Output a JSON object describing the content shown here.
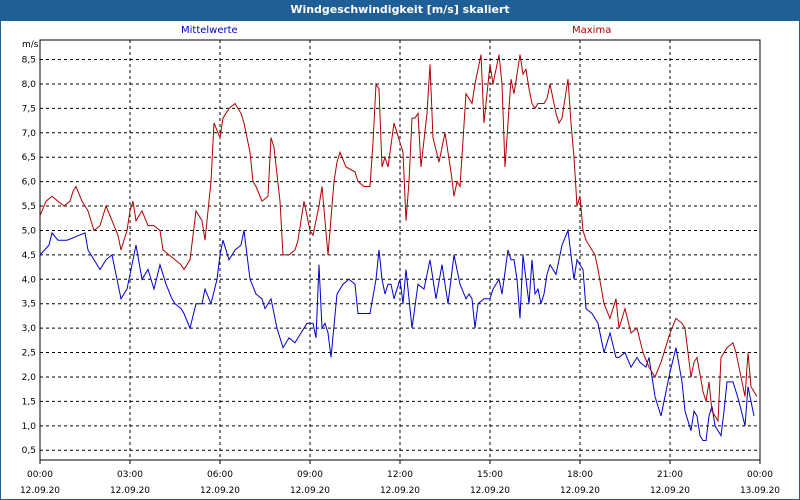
{
  "title": "Windgeschwindigkeit [m/s] skaliert",
  "chart_data": {
    "type": "line",
    "title": "Windgeschwindigkeit [m/s] skaliert",
    "ylabel": "m/s",
    "xlabel": "",
    "ylim": [
      0.3,
      8.9
    ],
    "xlim": [
      0,
      24
    ],
    "grid": true,
    "y_ticks": [
      "0,5",
      "1,0",
      "1,5",
      "2,0",
      "2,5",
      "3,0",
      "3,5",
      "4,0",
      "4,5",
      "5,0",
      "5,5",
      "6,0",
      "6,5",
      "7,0",
      "7,5",
      "8,0",
      "8,5"
    ],
    "x_ticks": [
      {
        "time": "00:00",
        "date": "12.09.20"
      },
      {
        "time": "03:00",
        "date": "12.09.20"
      },
      {
        "time": "06:00",
        "date": "12.09.20"
      },
      {
        "time": "09:00",
        "date": "12.09.20"
      },
      {
        "time": "12:00",
        "date": "12.09.20"
      },
      {
        "time": "15:00",
        "date": "12.09.20"
      },
      {
        "time": "18:00",
        "date": "12.09.20"
      },
      {
        "time": "21:00",
        "date": "12.09.20"
      },
      {
        "time": "00:00",
        "date": "13.09.20"
      }
    ],
    "series": [
      {
        "name": "Mittelwerte",
        "color": "#0000cc",
        "points": [
          [
            0,
            4.5
          ],
          [
            0.3,
            4.7
          ],
          [
            0.4,
            4.95
          ],
          [
            0.6,
            4.8
          ],
          [
            0.9,
            4.8
          ],
          [
            1.1,
            4.85
          ],
          [
            1.3,
            4.9
          ],
          [
            1.5,
            4.95
          ],
          [
            1.6,
            4.6
          ],
          [
            1.8,
            4.4
          ],
          [
            2.0,
            4.2
          ],
          [
            2.2,
            4.4
          ],
          [
            2.4,
            4.5
          ],
          [
            2.7,
            3.6
          ],
          [
            2.9,
            3.8
          ],
          [
            3.1,
            4.4
          ],
          [
            3.2,
            4.7
          ],
          [
            3.4,
            4.0
          ],
          [
            3.6,
            4.2
          ],
          [
            3.8,
            3.8
          ],
          [
            4.0,
            4.3
          ],
          [
            4.2,
            3.9
          ],
          [
            4.4,
            3.6
          ],
          [
            4.5,
            3.5
          ],
          [
            4.7,
            3.4
          ],
          [
            4.8,
            3.3
          ],
          [
            5.0,
            3.0
          ],
          [
            5.2,
            3.5
          ],
          [
            5.4,
            3.5
          ],
          [
            5.5,
            3.8
          ],
          [
            5.7,
            3.5
          ],
          [
            5.9,
            4.0
          ],
          [
            6.0,
            4.5
          ],
          [
            6.1,
            4.8
          ],
          [
            6.3,
            4.4
          ],
          [
            6.5,
            4.6
          ],
          [
            6.7,
            4.7
          ],
          [
            6.8,
            5.0
          ],
          [
            6.9,
            4.5
          ],
          [
            7.0,
            4.0
          ],
          [
            7.2,
            3.7
          ],
          [
            7.4,
            3.6
          ],
          [
            7.5,
            3.4
          ],
          [
            7.7,
            3.6
          ],
          [
            7.9,
            3.0
          ],
          [
            8.1,
            2.6
          ],
          [
            8.3,
            2.8
          ],
          [
            8.5,
            2.7
          ],
          [
            8.7,
            2.9
          ],
          [
            8.9,
            3.1
          ],
          [
            9.1,
            3.1
          ],
          [
            9.2,
            2.8
          ],
          [
            9.3,
            4.3
          ],
          [
            9.4,
            3.0
          ],
          [
            9.5,
            3.1
          ],
          [
            9.6,
            2.9
          ],
          [
            9.7,
            2.4
          ],
          [
            9.9,
            3.7
          ],
          [
            10.1,
            3.9
          ],
          [
            10.3,
            4.0
          ],
          [
            10.5,
            3.9
          ],
          [
            10.6,
            3.3
          ],
          [
            10.8,
            3.3
          ],
          [
            11.0,
            3.3
          ],
          [
            11.2,
            4.0
          ],
          [
            11.3,
            4.6
          ],
          [
            11.4,
            4.0
          ],
          [
            11.5,
            3.7
          ],
          [
            11.6,
            3.9
          ],
          [
            11.7,
            3.9
          ],
          [
            11.8,
            3.6
          ],
          [
            12.0,
            4.0
          ],
          [
            12.1,
            3.5
          ],
          [
            12.2,
            4.2
          ],
          [
            12.4,
            3.0
          ],
          [
            12.6,
            3.9
          ],
          [
            12.8,
            3.8
          ],
          [
            13.0,
            4.4
          ],
          [
            13.2,
            3.6
          ],
          [
            13.4,
            4.3
          ],
          [
            13.6,
            3.5
          ],
          [
            13.8,
            4.5
          ],
          [
            14.0,
            3.9
          ],
          [
            14.2,
            3.6
          ],
          [
            14.3,
            3.7
          ],
          [
            14.4,
            3.6
          ],
          [
            14.5,
            3.0
          ],
          [
            14.6,
            3.5
          ],
          [
            14.8,
            3.6
          ],
          [
            15.0,
            3.6
          ],
          [
            15.1,
            3.8
          ],
          [
            15.3,
            4.0
          ],
          [
            15.4,
            3.7
          ],
          [
            15.6,
            4.6
          ],
          [
            15.7,
            4.4
          ],
          [
            15.8,
            4.4
          ],
          [
            15.9,
            4.0
          ],
          [
            16.0,
            3.2
          ],
          [
            16.1,
            4.5
          ],
          [
            16.2,
            4.0
          ],
          [
            16.3,
            3.5
          ],
          [
            16.4,
            4.4
          ],
          [
            16.5,
            3.7
          ],
          [
            16.6,
            3.8
          ],
          [
            16.7,
            3.5
          ],
          [
            16.8,
            3.7
          ],
          [
            16.9,
            4.1
          ],
          [
            17.0,
            4.3
          ],
          [
            17.2,
            4.1
          ],
          [
            17.4,
            4.7
          ],
          [
            17.6,
            5.0
          ],
          [
            17.7,
            4.5
          ],
          [
            17.8,
            4.0
          ],
          [
            17.9,
            4.4
          ],
          [
            18.1,
            4.2
          ],
          [
            18.2,
            3.4
          ],
          [
            18.4,
            3.3
          ],
          [
            18.6,
            3.1
          ],
          [
            18.8,
            2.5
          ],
          [
            19.0,
            2.9
          ],
          [
            19.2,
            2.4
          ],
          [
            19.3,
            2.4
          ],
          [
            19.5,
            2.5
          ],
          [
            19.7,
            2.2
          ],
          [
            19.9,
            2.4
          ],
          [
            20.0,
            2.3
          ],
          [
            20.2,
            2.2
          ],
          [
            20.3,
            2.4
          ],
          [
            20.5,
            1.6
          ],
          [
            20.7,
            1.2
          ],
          [
            20.9,
            1.8
          ],
          [
            21.0,
            2.1
          ],
          [
            21.2,
            2.6
          ],
          [
            21.4,
            1.9
          ],
          [
            21.5,
            1.3
          ],
          [
            21.7,
            0.9
          ],
          [
            21.8,
            1.3
          ],
          [
            21.9,
            1.2
          ],
          [
            22.0,
            0.8
          ],
          [
            22.1,
            0.7
          ],
          [
            22.2,
            0.7
          ],
          [
            22.3,
            1.2
          ],
          [
            22.4,
            1.4
          ],
          [
            22.5,
            1.0
          ],
          [
            22.7,
            0.8
          ],
          [
            22.8,
            1.3
          ],
          [
            22.9,
            1.9
          ],
          [
            23.1,
            1.9
          ],
          [
            23.3,
            1.5
          ],
          [
            23.5,
            1.0
          ],
          [
            23.6,
            1.8
          ],
          [
            23.8,
            1.2
          ]
        ]
      },
      {
        "name": "Maxima",
        "color": "#b00000",
        "points": [
          [
            0,
            5.3
          ],
          [
            0.2,
            5.6
          ],
          [
            0.4,
            5.7
          ],
          [
            0.6,
            5.6
          ],
          [
            0.8,
            5.5
          ],
          [
            1.0,
            5.6
          ],
          [
            1.1,
            5.8
          ],
          [
            1.2,
            5.9
          ],
          [
            1.4,
            5.6
          ],
          [
            1.6,
            5.4
          ],
          [
            1.8,
            5.0
          ],
          [
            2.0,
            5.1
          ],
          [
            2.2,
            5.5
          ],
          [
            2.4,
            5.2
          ],
          [
            2.6,
            4.9
          ],
          [
            2.7,
            4.6
          ],
          [
            2.9,
            5.0
          ],
          [
            3.0,
            5.4
          ],
          [
            3.1,
            5.6
          ],
          [
            3.2,
            5.2
          ],
          [
            3.4,
            5.4
          ],
          [
            3.6,
            5.1
          ],
          [
            3.8,
            5.1
          ],
          [
            4.0,
            5.0
          ],
          [
            4.1,
            4.6
          ],
          [
            4.3,
            4.5
          ],
          [
            4.5,
            4.4
          ],
          [
            4.7,
            4.3
          ],
          [
            4.8,
            4.2
          ],
          [
            5.0,
            4.4
          ],
          [
            5.2,
            5.4
          ],
          [
            5.4,
            5.2
          ],
          [
            5.5,
            4.8
          ],
          [
            5.7,
            6.0
          ],
          [
            5.8,
            7.2
          ],
          [
            6.0,
            6.9
          ],
          [
            6.1,
            7.3
          ],
          [
            6.3,
            7.5
          ],
          [
            6.5,
            7.6
          ],
          [
            6.7,
            7.4
          ],
          [
            6.8,
            7.2
          ],
          [
            7.0,
            6.6
          ],
          [
            7.1,
            6.0
          ],
          [
            7.2,
            5.9
          ],
          [
            7.4,
            5.6
          ],
          [
            7.6,
            5.7
          ],
          [
            7.7,
            6.9
          ],
          [
            7.8,
            6.7
          ],
          [
            8.0,
            5.6
          ],
          [
            8.1,
            4.5
          ],
          [
            8.3,
            4.5
          ],
          [
            8.5,
            4.6
          ],
          [
            8.6,
            4.8
          ],
          [
            8.8,
            5.6
          ],
          [
            9.0,
            5.0
          ],
          [
            9.1,
            4.9
          ],
          [
            9.3,
            5.5
          ],
          [
            9.4,
            5.9
          ],
          [
            9.6,
            4.5
          ],
          [
            9.8,
            6.0
          ],
          [
            9.9,
            6.4
          ],
          [
            10.0,
            6.6
          ],
          [
            10.2,
            6.3
          ],
          [
            10.5,
            6.2
          ],
          [
            10.6,
            6.0
          ],
          [
            10.8,
            5.9
          ],
          [
            11.0,
            5.9
          ],
          [
            11.1,
            6.8
          ],
          [
            11.2,
            8.0
          ],
          [
            11.3,
            7.9
          ],
          [
            11.4,
            6.3
          ],
          [
            11.5,
            6.5
          ],
          [
            11.6,
            6.3
          ],
          [
            11.8,
            7.2
          ],
          [
            12.0,
            6.8
          ],
          [
            12.1,
            6.6
          ],
          [
            12.2,
            5.2
          ],
          [
            12.3,
            6.0
          ],
          [
            12.4,
            7.3
          ],
          [
            12.5,
            7.3
          ],
          [
            12.6,
            7.4
          ],
          [
            12.7,
            6.3
          ],
          [
            12.9,
            7.4
          ],
          [
            13.0,
            8.4
          ],
          [
            13.1,
            6.9
          ],
          [
            13.3,
            6.4
          ],
          [
            13.5,
            7.0
          ],
          [
            13.7,
            6.2
          ],
          [
            13.8,
            5.7
          ],
          [
            13.9,
            6.0
          ],
          [
            14.0,
            5.9
          ],
          [
            14.2,
            7.8
          ],
          [
            14.4,
            7.6
          ],
          [
            14.5,
            8.0
          ],
          [
            14.7,
            8.6
          ],
          [
            14.8,
            7.2
          ],
          [
            15.0,
            8.4
          ],
          [
            15.1,
            8.0
          ],
          [
            15.3,
            8.6
          ],
          [
            15.4,
            8.0
          ],
          [
            15.5,
            6.3
          ],
          [
            15.7,
            8.1
          ],
          [
            15.8,
            7.8
          ],
          [
            16.0,
            8.6
          ],
          [
            16.1,
            8.2
          ],
          [
            16.2,
            8.3
          ],
          [
            16.3,
            7.9
          ],
          [
            16.4,
            7.6
          ],
          [
            16.5,
            7.5
          ],
          [
            16.6,
            7.6
          ],
          [
            16.8,
            7.6
          ],
          [
            16.9,
            7.7
          ],
          [
            17.0,
            8.0
          ],
          [
            17.2,
            7.4
          ],
          [
            17.3,
            7.2
          ],
          [
            17.4,
            7.3
          ],
          [
            17.6,
            8.1
          ],
          [
            17.7,
            7.2
          ],
          [
            17.8,
            6.5
          ],
          [
            17.9,
            5.5
          ],
          [
            18.0,
            5.7
          ],
          [
            18.1,
            5.0
          ],
          [
            18.2,
            4.8
          ],
          [
            18.4,
            4.6
          ],
          [
            18.5,
            4.5
          ],
          [
            18.6,
            4.2
          ],
          [
            18.8,
            3.5
          ],
          [
            19.0,
            3.2
          ],
          [
            19.2,
            3.6
          ],
          [
            19.3,
            3.0
          ],
          [
            19.5,
            3.4
          ],
          [
            19.7,
            2.9
          ],
          [
            19.9,
            3.0
          ],
          [
            20.1,
            2.5
          ],
          [
            20.3,
            2.2
          ],
          [
            20.5,
            2.0
          ],
          [
            20.7,
            2.3
          ],
          [
            20.9,
            2.7
          ],
          [
            21.0,
            2.9
          ],
          [
            21.2,
            3.2
          ],
          [
            21.4,
            3.1
          ],
          [
            21.5,
            3.0
          ],
          [
            21.7,
            2.0
          ],
          [
            21.8,
            2.3
          ],
          [
            21.9,
            2.4
          ],
          [
            22.1,
            1.7
          ],
          [
            22.2,
            1.5
          ],
          [
            22.3,
            1.9
          ],
          [
            22.4,
            1.3
          ],
          [
            22.6,
            1.1
          ],
          [
            22.7,
            2.4
          ],
          [
            22.8,
            2.5
          ],
          [
            22.9,
            2.6
          ],
          [
            23.1,
            2.7
          ],
          [
            23.2,
            2.5
          ],
          [
            23.3,
            2.2
          ],
          [
            23.5,
            1.6
          ],
          [
            23.6,
            2.5
          ],
          [
            23.7,
            1.8
          ],
          [
            23.9,
            1.6
          ]
        ]
      }
    ]
  }
}
